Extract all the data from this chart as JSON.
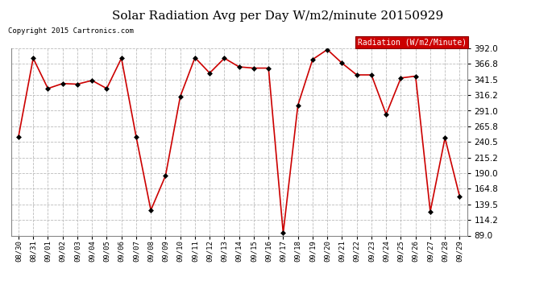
{
  "title": "Solar Radiation Avg per Day W/m2/minute 20150929",
  "copyright": "Copyright 2015 Cartronics.com",
  "legend_label": "Radiation (W/m2/Minute)",
  "dates": [
    "08/30",
    "08/31",
    "09/01",
    "09/02",
    "09/03",
    "09/04",
    "09/05",
    "09/06",
    "09/07",
    "09/08",
    "09/09",
    "09/10",
    "09/11",
    "09/12",
    "09/13",
    "09/14",
    "09/15",
    "09/16",
    "09/17",
    "09/18",
    "09/19",
    "09/20",
    "09/21",
    "09/22",
    "09/23",
    "09/24",
    "09/25",
    "09/26",
    "09/27",
    "09/28",
    "09/29"
  ],
  "values": [
    249,
    376,
    327,
    335,
    334,
    340,
    327,
    376,
    249,
    130,
    186,
    314,
    377,
    352,
    376,
    362,
    360,
    360,
    93,
    300,
    374,
    390,
    368,
    349,
    349,
    285,
    344,
    347,
    128,
    247,
    152
  ],
  "line_color": "#cc0000",
  "marker_color": "#000000",
  "bg_color": "#ffffff",
  "plot_bg_color": "#ffffff",
  "grid_color": "#bbbbbb",
  "title_fontsize": 11,
  "legend_bg": "#cc0000",
  "legend_text_color": "#ffffff",
  "ylim_min": 89.0,
  "ylim_max": 392.0,
  "yticks": [
    89.0,
    114.2,
    139.5,
    164.8,
    190.0,
    215.2,
    240.5,
    265.8,
    291.0,
    316.2,
    341.5,
    366.8,
    392.0
  ]
}
